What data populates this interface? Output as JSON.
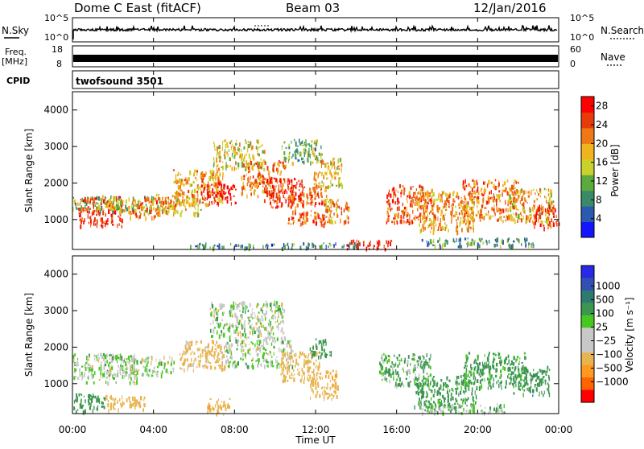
{
  "header": {
    "station": "Dome C East (fitACF)",
    "beam": "Beam 03",
    "date": "12/Jan/2016"
  },
  "strips": {
    "nsky_label": "N.Sky",
    "nsky_ticks": [
      "10^5",
      "10^0"
    ],
    "nsearch_label": "N.Search",
    "nsearch_ticks": [
      "10^5",
      "10^0"
    ],
    "freq_label_1": "Freq.",
    "freq_label_2": "[MHz]",
    "freq_ticks": [
      "18",
      "8"
    ],
    "nave_label": "Nave",
    "nave_ticks": [
      "60",
      "0"
    ],
    "cpid_label": "CPID",
    "cpid_value": "twofsound 3501"
  },
  "colors": {
    "power_scale": [
      "#1414ff",
      "#2a5ab0",
      "#3a8a6a",
      "#5aaa3c",
      "#c8d22a",
      "#f0b41e",
      "#f07814",
      "#e63c0a",
      "#ff0000"
    ],
    "velocity_scale": [
      "#ff0000",
      "#ff6400",
      "#ff9a1e",
      "#e8b450",
      "#c8c8c8",
      "#c8c8c8",
      "#46c81e",
      "#3c9650",
      "#2d7a6e",
      "#3250b4",
      "#2828e6"
    ]
  },
  "chart_data": [
    {
      "type": "heatmap",
      "name": "power",
      "ylabel": "Slant Range [km]",
      "xlabel": "",
      "x_ticks": [
        "00:00",
        "04:00",
        "08:00",
        "12:00",
        "16:00",
        "20:00",
        "00:00"
      ],
      "y_ticks": [
        1000,
        2000,
        3000,
        4000
      ],
      "ylim": [
        180,
        4500
      ],
      "colorbar_label": "Power [dB]",
      "colorbar_ticks": [
        4,
        8,
        12,
        16,
        20,
        24,
        28
      ],
      "colorbar_range": [
        0,
        30
      ],
      "blobs": [
        {
          "t": 0.6,
          "r": 1450,
          "w": 2.4,
          "h": 280,
          "v": 12
        },
        {
          "t": 1.4,
          "r": 1250,
          "w": 1.6,
          "h": 500,
          "v": 26
        },
        {
          "t": 2.6,
          "r": 1450,
          "w": 2.0,
          "h": 260,
          "v": 14
        },
        {
          "t": 3.8,
          "r": 1350,
          "w": 1.5,
          "h": 350,
          "v": 22
        },
        {
          "t": 5.2,
          "r": 1450,
          "w": 1.6,
          "h": 350,
          "v": 18
        },
        {
          "t": 6.2,
          "r": 1900,
          "w": 1.8,
          "h": 600,
          "v": 20
        },
        {
          "t": 7.2,
          "r": 1750,
          "w": 1.2,
          "h": 350,
          "v": 28
        },
        {
          "t": 8.2,
          "r": 2800,
          "w": 1.8,
          "h": 500,
          "v": 16
        },
        {
          "t": 9.4,
          "r": 2150,
          "w": 1.6,
          "h": 600,
          "v": 22
        },
        {
          "t": 10.4,
          "r": 1750,
          "w": 1.4,
          "h": 500,
          "v": 26
        },
        {
          "t": 11.3,
          "r": 2900,
          "w": 1.4,
          "h": 400,
          "v": 12
        },
        {
          "t": 11.6,
          "r": 1400,
          "w": 1.4,
          "h": 650,
          "v": 24
        },
        {
          "t": 12.6,
          "r": 2300,
          "w": 1.0,
          "h": 500,
          "v": 18
        },
        {
          "t": 13.0,
          "r": 1250,
          "w": 0.9,
          "h": 400,
          "v": 20
        },
        {
          "t": 14.6,
          "r": 330,
          "w": 1.6,
          "h": 160,
          "v": 28
        },
        {
          "t": 16.6,
          "r": 1450,
          "w": 1.6,
          "h": 650,
          "v": 24
        },
        {
          "t": 18.4,
          "r": 1250,
          "w": 2.0,
          "h": 700,
          "v": 20
        },
        {
          "t": 20.6,
          "r": 1550,
          "w": 2.0,
          "h": 700,
          "v": 22
        },
        {
          "t": 22.6,
          "r": 1400,
          "w": 1.6,
          "h": 600,
          "v": 18
        },
        {
          "t": 23.4,
          "r": 1100,
          "w": 1.0,
          "h": 400,
          "v": 26
        },
        {
          "t": 10.0,
          "r": 310,
          "w": 6.0,
          "h": 90,
          "v": 8
        },
        {
          "t": 20.0,
          "r": 400,
          "w": 4.0,
          "h": 150,
          "v": 10
        }
      ]
    },
    {
      "type": "heatmap",
      "name": "velocity",
      "ylabel": "Slant Range [km]",
      "xlabel": "Time UT",
      "x_ticks": [
        "00:00",
        "04:00",
        "08:00",
        "12:00",
        "16:00",
        "20:00",
        "00:00"
      ],
      "y_ticks": [
        1000,
        2000,
        3000,
        4000
      ],
      "ylim": [
        180,
        4500
      ],
      "colorbar_label": "Velocity [m s⁻¹]",
      "colorbar_ticks": [
        "1000",
        "500",
        "100",
        "25",
        "−25",
        "−100",
        "−500",
        "−1000"
      ],
      "blobs": [
        {
          "t": 1.2,
          "r": 1450,
          "w": 2.8,
          "h": 500,
          "v": 0
        },
        {
          "t": 0.6,
          "r": 500,
          "w": 1.4,
          "h": 300,
          "v": 300
        },
        {
          "t": 2.6,
          "r": 500,
          "w": 1.4,
          "h": 250,
          "v": -300
        },
        {
          "t": 3.6,
          "r": 1500,
          "w": 2.0,
          "h": 350,
          "v": 0
        },
        {
          "t": 6.4,
          "r": 1800,
          "w": 1.6,
          "h": 500,
          "v": -200
        },
        {
          "t": 8.6,
          "r": 2800,
          "w": 2.6,
          "h": 600,
          "v": 0
        },
        {
          "t": 9.2,
          "r": 1900,
          "w": 2.4,
          "h": 500,
          "v": 0
        },
        {
          "t": 11.2,
          "r": 1500,
          "w": 1.4,
          "h": 500,
          "v": -300
        },
        {
          "t": 12.4,
          "r": 1000,
          "w": 1.0,
          "h": 500,
          "v": -400
        },
        {
          "t": 12.2,
          "r": 2000,
          "w": 0.8,
          "h": 300,
          "v": 200
        },
        {
          "t": 16.4,
          "r": 1400,
          "w": 1.8,
          "h": 550,
          "v": 100
        },
        {
          "t": 18.4,
          "r": 800,
          "w": 2.2,
          "h": 550,
          "v": 200
        },
        {
          "t": 20.8,
          "r": 1400,
          "w": 2.2,
          "h": 600,
          "v": 150
        },
        {
          "t": 22.6,
          "r": 1100,
          "w": 1.4,
          "h": 500,
          "v": 400
        },
        {
          "t": 19.2,
          "r": 350,
          "w": 3.0,
          "h": 160,
          "v": 30
        },
        {
          "t": 7.2,
          "r": 400,
          "w": 0.8,
          "h": 300,
          "v": -400
        }
      ]
    }
  ]
}
